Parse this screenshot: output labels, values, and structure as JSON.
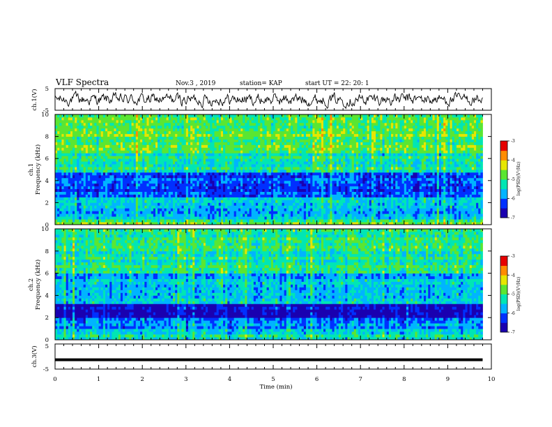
{
  "header": {
    "title": "VLF Spectra",
    "date": "Nov.3  , 2019",
    "station": "station= KAP",
    "start": "start  UT =   22: 20: 1"
  },
  "chart_data": [
    {
      "type": "line",
      "id": "ch1-waveform",
      "ylabel": "ch.1(V)",
      "ylim": [
        -5,
        5
      ],
      "yticks": [
        "5",
        "-5"
      ],
      "xlim": [
        0,
        10
      ],
      "series": [
        {
          "x_range": [
            0,
            9.8
          ],
          "mean": 0,
          "amplitude": 3.5,
          "color": "#000000"
        }
      ]
    },
    {
      "type": "heatmap",
      "id": "ch1-spectrogram",
      "ylabel": "ch.1\nFrequency (kHz)",
      "ylim": [
        0,
        10
      ],
      "yticks": [
        "0",
        "2",
        "4",
        "6",
        "8",
        "10"
      ],
      "xlim": [
        0,
        10
      ],
      "data_x_range": [
        0,
        9.8
      ],
      "bands": [
        {
          "from": 0,
          "to": 0.6,
          "level": -4.6
        },
        {
          "from": 0.6,
          "to": 1.6,
          "level": -5.5
        },
        {
          "from": 1.6,
          "to": 2.6,
          "level": -5.2
        },
        {
          "from": 2.6,
          "to": 4.8,
          "level": -6.1
        },
        {
          "from": 4.8,
          "to": 6.5,
          "level": -5.0
        },
        {
          "from": 6.5,
          "to": 10,
          "level": -4.5
        }
      ]
    },
    {
      "type": "heatmap",
      "id": "ch2-spectrogram",
      "ylabel": "ch.2\nFrequency (kHz)",
      "ylim": [
        0,
        10
      ],
      "yticks": [
        "0",
        "2",
        "4",
        "6",
        "8",
        "10"
      ],
      "xlim": [
        0,
        10
      ],
      "data_x_range": [
        0,
        9.8
      ],
      "bands": [
        {
          "from": 0,
          "to": 0.9,
          "level": -5.1
        },
        {
          "from": 0.9,
          "to": 1.9,
          "level": -5.8
        },
        {
          "from": 1.9,
          "to": 3.2,
          "level": -6.6
        },
        {
          "from": 3.2,
          "to": 6.0,
          "level": -5.5
        },
        {
          "from": 6.0,
          "to": 10,
          "level": -4.9
        }
      ]
    },
    {
      "type": "line",
      "id": "ch3-waveform",
      "ylabel": "ch.3(V)",
      "ylim": [
        -5,
        5
      ],
      "yticks": [
        "5",
        "-5"
      ],
      "xlim": [
        0,
        10
      ],
      "series": [
        {
          "x_range": [
            0,
            9.8
          ],
          "mean": -1.3,
          "amplitude": 0,
          "color": "#000000"
        }
      ]
    }
  ],
  "colorbars": [
    {
      "id": "cb1",
      "range": [
        -7,
        -3
      ],
      "ticks": [
        "-3",
        "-4",
        "-5",
        "-6",
        "-7"
      ],
      "label": "log(PSD)(V²/Hz)"
    },
    {
      "id": "cb2",
      "range": [
        -7,
        -3
      ],
      "ticks": [
        "-3",
        "-4",
        "-5",
        "-6",
        "-7"
      ],
      "label": "log(PSD)(V²/Hz)"
    }
  ],
  "x_axis": {
    "label": "Time  (min)",
    "ticks": [
      "0",
      "1",
      "2",
      "3",
      "4",
      "5",
      "6",
      "7",
      "8",
      "9",
      "10"
    ],
    "range": [
      0,
      10
    ]
  },
  "colormap": [
    "#1a00b0",
    "#0030ff",
    "#00b4ff",
    "#00e6b4",
    "#5ae632",
    "#e6e600",
    "#ff8c00",
    "#e60000",
    "#ffffff"
  ]
}
